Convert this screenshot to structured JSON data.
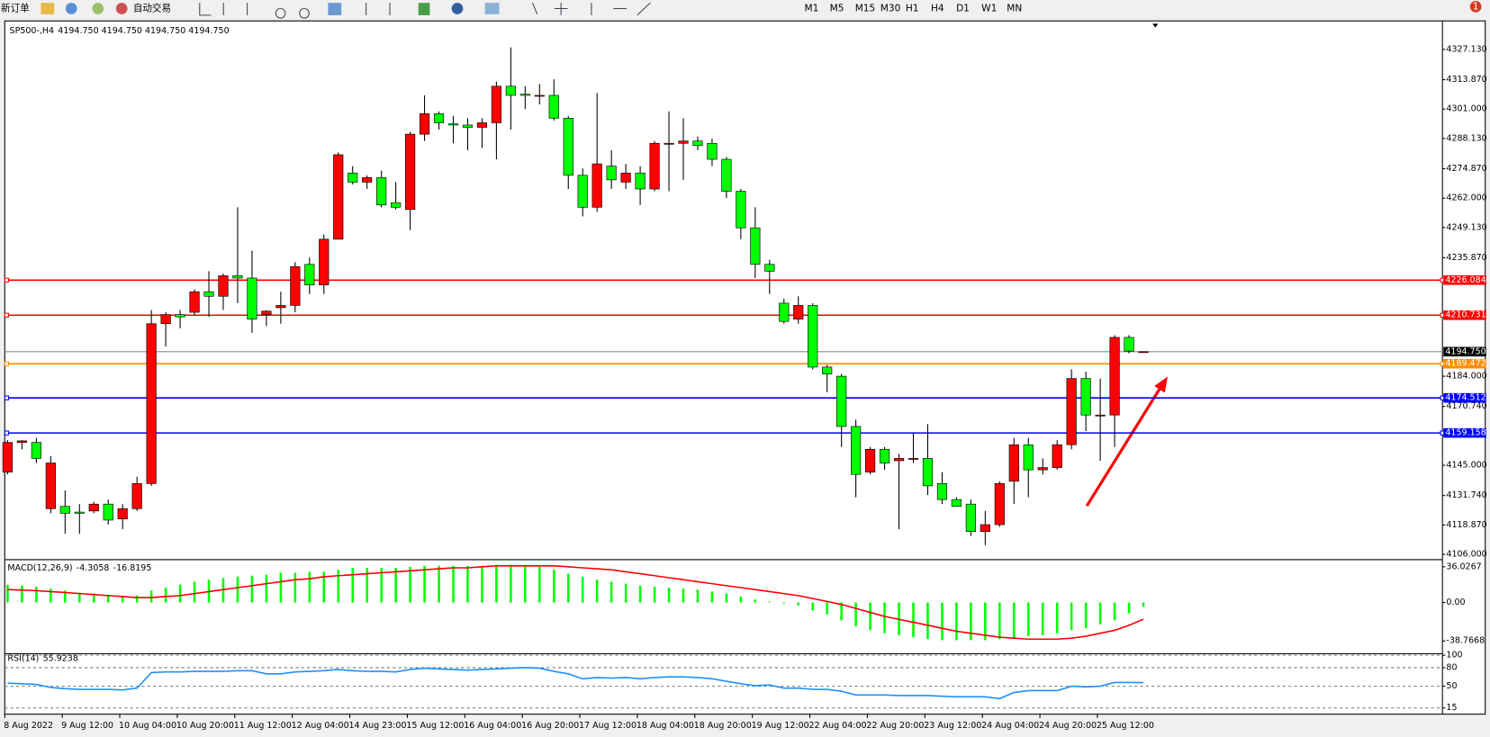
{
  "toolbar": {
    "new_order": "新订单",
    "auto_trading": "自动交易",
    "timeframes": [
      "M1",
      "M5",
      "M15",
      "M30",
      "H1",
      "H4",
      "D1",
      "W1",
      "MN"
    ],
    "notifications": 1
  },
  "chart_data": [
    {
      "type": "candlestick",
      "title": "SP500-,H4",
      "subtitle": "4194.750 4194.750 4194.750 4194.750",
      "categories": [
        "8 Aug 2022",
        null,
        null,
        null,
        "9 Aug 12:00",
        null,
        null,
        null,
        "10 Aug 04:00",
        null,
        null,
        null,
        "10 Aug 20:00",
        null,
        null,
        null,
        "11 Aug 12:00",
        null,
        null,
        null,
        "12 Aug 04:00",
        null,
        null,
        null,
        "14 Aug 23:00",
        null,
        null,
        null,
        "15 Aug 12:00",
        null,
        null,
        null,
        "16 Aug 04:00",
        null,
        null,
        null,
        "16 Aug 20:00",
        null,
        null,
        null,
        "17 Aug 12:00",
        null,
        null,
        null,
        "18 Aug 04:00",
        null,
        null,
        null,
        "18 Aug 20:00",
        null,
        null,
        null,
        "19 Aug 12:00",
        null,
        null,
        null,
        "22 Aug 04:00",
        null,
        null,
        null,
        "22 Aug 20:00",
        null,
        null,
        null,
        "23 Aug 12:00",
        null,
        null,
        null,
        "24 Aug 04:00",
        null,
        null,
        null,
        "24 Aug 20:00",
        null,
        null,
        null,
        "25 Aug 12:00",
        null,
        null,
        null
      ],
      "open": [
        4142,
        4155,
        4155,
        4126,
        4127,
        4124.5,
        4125,
        4128,
        4121.5,
        4126,
        4137,
        4207,
        4211,
        4212,
        4221,
        4219,
        4228,
        4227,
        4211,
        4214,
        4215,
        4233,
        4224,
        4244,
        4273,
        4269,
        4271,
        4260,
        4257,
        4290,
        4299,
        4294.5,
        4294,
        4293,
        4295,
        4311,
        4307.5,
        4307,
        4307,
        4297,
        4272,
        4258,
        4276,
        4269,
        4273,
        4266,
        4286,
        4286,
        4287,
        4286,
        4279,
        4265,
        4249,
        4233,
        4216,
        4209,
        4215,
        4188,
        4184,
        4162,
        4142,
        4152,
        4147,
        4148,
        4148,
        4137,
        4130,
        4128,
        4116,
        4119,
        4138,
        4154,
        4143,
        4144,
        4154,
        4183,
        4167,
        4167,
        4201,
        4194.75
      ],
      "high": [
        4156,
        4156,
        4157,
        4149,
        4134,
        4128,
        4129,
        4130,
        4128,
        4140,
        4213,
        4212,
        4213,
        4222,
        4230,
        4229,
        4258,
        4239,
        4213,
        4221,
        4234,
        4236,
        4246,
        4282,
        4276,
        4272,
        4274,
        4269,
        4291,
        4307,
        4300,
        4298,
        4297,
        4297,
        4313,
        4328,
        4311,
        4312,
        4314,
        4298,
        4275,
        4308,
        4283,
        4277,
        4276,
        4287,
        4300,
        4297,
        4289,
        4288,
        4280,
        4266,
        4258,
        4235,
        4218,
        4219,
        4216,
        4189,
        4185,
        4165,
        4153,
        4153,
        4150,
        4159,
        4163,
        4142,
        4131,
        4130,
        4125,
        4138,
        4157,
        4157,
        4148,
        4156,
        4187,
        4186,
        4183,
        4202,
        4202,
        4194.75
      ],
      "low": [
        4141,
        4152,
        4146,
        4124,
        4115,
        4115,
        4124,
        4119,
        4117,
        4125,
        4136,
        4197,
        4205,
        4211,
        4210,
        4213,
        4216,
        4203,
        4206,
        4207,
        4212,
        4220,
        4220,
        4244,
        4268,
        4266,
        4258,
        4257,
        4248,
        4287,
        4292,
        4286,
        4283,
        4284,
        4279,
        4292,
        4301,
        4303,
        4296,
        4266,
        4254,
        4256,
        4266,
        4266,
        4259,
        4265,
        4265,
        4270,
        4283,
        4276,
        4262,
        4244,
        4227,
        4220,
        4207,
        4207,
        4187,
        4177,
        4153,
        4131,
        4141,
        4143,
        4117,
        4146,
        4132,
        4128,
        4127,
        4114,
        4110,
        4118,
        4128,
        4131,
        4141,
        4143,
        4152,
        4160,
        4147,
        4153,
        4194,
        4194.75
      ],
      "close": [
        4155,
        4155.7,
        4148,
        4146,
        4124,
        4124,
        4128,
        4121,
        4126,
        4137,
        4207,
        4211,
        4210,
        4221,
        4219,
        4228,
        4227,
        4209,
        4212.5,
        4215,
        4232,
        4224,
        4244,
        4281,
        4269,
        4271,
        4259,
        4258,
        4290,
        4299,
        4295,
        4294,
        4293,
        4295,
        4311,
        4307,
        4307,
        4307,
        4297,
        4272,
        4258,
        4277,
        4270,
        4273,
        4266,
        4286,
        4286,
        4287,
        4285,
        4279,
        4265,
        4249,
        4233,
        4230,
        4208,
        4215,
        4188,
        4185,
        4162,
        4141,
        4152,
        4146,
        4148,
        4148,
        4136,
        4130,
        4127,
        4116,
        4119,
        4137,
        4154,
        4143,
        4144,
        4154,
        4183,
        4167,
        4167,
        4201,
        4195,
        4194.75
      ],
      "up_color": "#ff0000",
      "down_color": "#00ff00",
      "ylim": [
        4104.3,
        4339.6
      ],
      "yticks": [
        {
          "value": 4327.13,
          "label": "4327.130"
        },
        {
          "value": 4313.87,
          "label": "4313.870"
        },
        {
          "value": 4301,
          "label": "4301.000"
        },
        {
          "value": 4288.13,
          "label": "4288.130"
        },
        {
          "value": 4274.87,
          "label": "4274.870"
        },
        {
          "value": 4262,
          "label": "4262.000"
        },
        {
          "value": 4249.13,
          "label": "4249.130"
        },
        {
          "value": 4235.87,
          "label": "4235.870"
        },
        {
          "value": 4184,
          "label": "4184.000"
        },
        {
          "value": 4170.74,
          "label": "4170.740"
        },
        {
          "value": 4145,
          "label": "4145.000"
        },
        {
          "value": 4131.74,
          "label": "4131.740"
        },
        {
          "value": 4118.87,
          "label": "4118.870"
        },
        {
          "value": 4106,
          "label": "4106.000"
        }
      ],
      "hlines": [
        {
          "value": 4226.084,
          "label": "4226.084",
          "color": "#ff0000"
        },
        {
          "value": 4210.731,
          "label": "4210.731",
          "color": "#ff0000"
        },
        {
          "value": 4189.472,
          "label": "4189.472",
          "color": "#ff8c00"
        },
        {
          "value": 4174.512,
          "label": "4174.512",
          "color": "#0000ff"
        },
        {
          "value": 4159.158,
          "label": "4159.158",
          "color": "#0000ff"
        }
      ],
      "last_price": {
        "value": 4194.75,
        "label": "4194.750"
      }
    },
    {
      "type": "macd",
      "title": "MACD(12,26,9)",
      "series": [
        {
          "color": "#00ff00",
          "values": [
            18,
            17,
            16,
            14,
            12,
            10,
            9,
            8,
            7,
            7,
            12,
            15,
            18,
            21,
            23,
            25,
            26,
            27,
            28,
            30,
            30,
            31,
            31,
            33,
            35,
            35,
            35,
            35,
            36,
            37,
            37,
            37,
            37,
            37,
            38,
            38,
            37,
            36,
            33,
            29,
            26,
            23,
            21,
            19,
            17,
            16,
            15,
            14,
            13,
            11,
            9,
            6,
            3,
            1,
            -1,
            -3,
            -8,
            -12,
            -18,
            -24,
            -28,
            -31,
            -33,
            -35,
            -37,
            -38,
            -38,
            -38,
            -38,
            -37,
            -36,
            -34,
            -33,
            -31,
            -28,
            -26,
            -22,
            -18,
            -11,
            -4.3058
          ]
        },
        {
          "color": "#ff0000",
          "values": [
            13,
            12.5,
            12,
            11,
            10,
            9,
            8,
            7,
            6,
            5,
            5,
            6,
            7,
            9,
            11,
            13,
            15,
            17,
            19,
            21,
            23,
            24,
            26,
            27,
            28,
            29,
            30,
            31,
            32,
            33,
            34,
            35,
            35,
            36,
            37,
            37,
            37,
            37,
            37,
            36,
            35,
            34,
            33,
            31,
            29,
            27,
            25,
            23,
            21,
            19,
            17,
            15,
            13,
            11,
            9,
            7,
            4,
            1,
            -2,
            -6,
            -10,
            -14,
            -17,
            -20,
            -23,
            -26,
            -29,
            -31,
            -33,
            -35,
            -36,
            -37,
            -37,
            -37,
            -36,
            -34,
            -31,
            -28,
            -23,
            -16.8195
          ]
        }
      ],
      "ylim": [
        -50.3,
        41.8
      ],
      "yticks": [
        36.0267,
        {
          "value": 0,
          "label": "0.00"
        },
        -38.7668
      ]
    },
    {
      "type": "rsi",
      "title": "RSI(14)",
      "series": [
        {
          "color": "#1e90ff",
          "values": [
            55,
            54,
            53,
            48,
            46,
            45,
            45,
            45,
            44,
            47,
            72,
            73,
            73,
            74,
            74,
            74,
            75,
            75,
            70,
            70,
            73,
            74,
            75,
            77,
            75,
            74,
            74,
            73,
            77,
            79,
            78,
            77,
            76,
            77,
            78,
            79,
            80,
            79,
            74,
            70,
            62,
            64,
            63,
            64,
            62,
            64,
            65,
            65,
            64,
            62,
            58,
            54,
            51,
            52,
            47,
            47,
            45,
            45,
            42,
            36,
            36,
            36,
            35,
            35,
            35,
            34,
            33,
            33,
            33,
            30,
            40,
            43,
            43,
            43,
            50,
            49,
            50,
            56,
            56,
            55.9238
          ]
        }
      ],
      "ylim": [
        5,
        100
      ],
      "yticks": [
        100,
        80,
        50,
        15
      ],
      "grid": true
    }
  ]
}
